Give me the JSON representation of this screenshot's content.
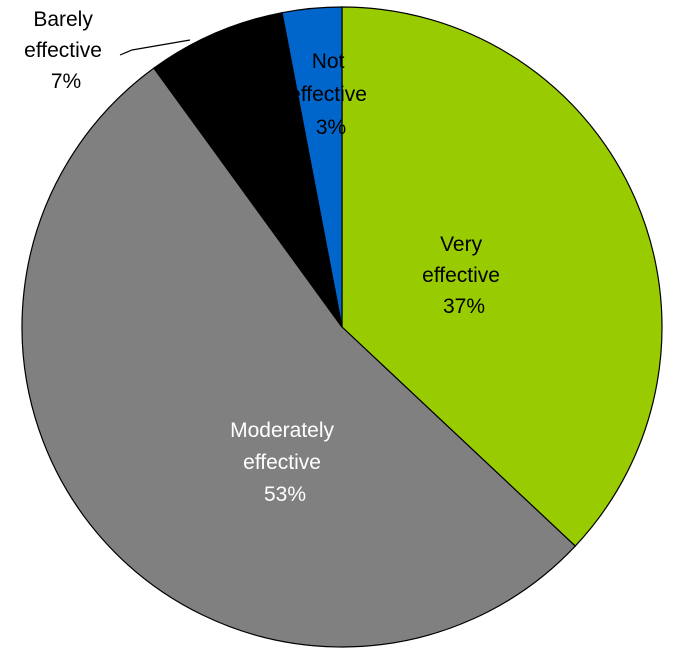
{
  "chart_data": {
    "type": "pie",
    "title": "",
    "start_angle_deg": 0,
    "direction": "clockwise",
    "legend": "none",
    "slices": [
      {
        "name": "Very effective",
        "label_lines": [
          "Very",
          "effective"
        ],
        "value_text": "37%",
        "value": 37,
        "color": "#99cc00",
        "label_color": "#000000"
      },
      {
        "name": "Moderately effective",
        "label_lines": [
          "Moderately",
          "effective"
        ],
        "value_text": "53%",
        "value": 53,
        "color": "#808080",
        "label_color": "#ffffff"
      },
      {
        "name": "Barely effective",
        "label_lines": [
          "Barely",
          "effective"
        ],
        "value_text": "7%",
        "value": 7,
        "color": "#000000",
        "label_color": "#000000"
      },
      {
        "name": "Not effective",
        "label_lines": [
          "Not",
          "effective"
        ],
        "value_text": "3%",
        "value": 3,
        "color": "#0066cc",
        "label_color": "#000000"
      }
    ]
  }
}
